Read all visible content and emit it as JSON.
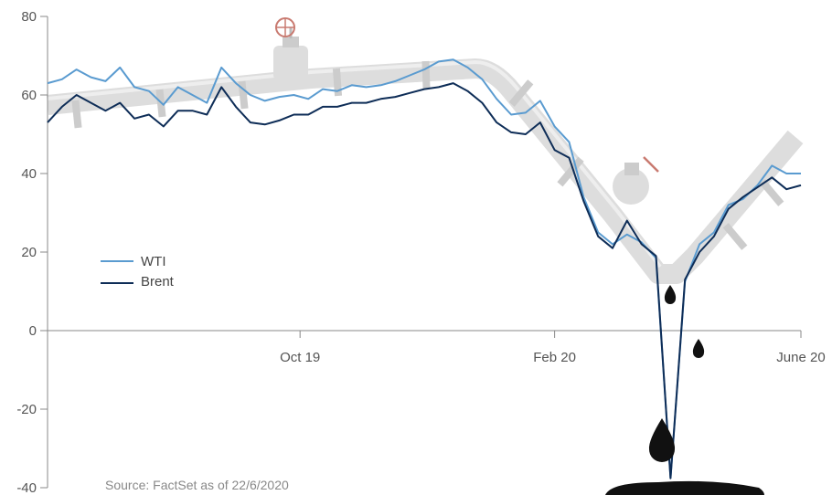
{
  "chart_data": {
    "type": "line",
    "title": "",
    "xlabel": "",
    "ylabel": "",
    "ylim": [
      -40,
      80
    ],
    "y_ticks": [
      80,
      60,
      40,
      20,
      0,
      -20,
      -40
    ],
    "x_ticks": [
      "Oct 19",
      "Feb 20",
      "June 20"
    ],
    "grid": false,
    "legend_position": "left",
    "source": "Source: FactSet as of 22/6/2020",
    "series": [
      {
        "name": "WTI",
        "color": "#5a9bd0",
        "points": [
          [
            "2019-06-24",
            63
          ],
          [
            "2019-07-01",
            64
          ],
          [
            "2019-07-08",
            66.5
          ],
          [
            "2019-07-15",
            64.5
          ],
          [
            "2019-07-22",
            63.5
          ],
          [
            "2019-07-29",
            67
          ],
          [
            "2019-08-05",
            62
          ],
          [
            "2019-08-12",
            61
          ],
          [
            "2019-08-19",
            57.5
          ],
          [
            "2019-08-26",
            62
          ],
          [
            "2019-09-02",
            60
          ],
          [
            "2019-09-09",
            58
          ],
          [
            "2019-09-16",
            67
          ],
          [
            "2019-09-23",
            63
          ],
          [
            "2019-09-30",
            60
          ],
          [
            "2019-10-07",
            58.5
          ],
          [
            "2019-10-14",
            59.5
          ],
          [
            "2019-10-21",
            60
          ],
          [
            "2019-10-28",
            59
          ],
          [
            "2019-11-04",
            61.5
          ],
          [
            "2019-11-11",
            61
          ],
          [
            "2019-11-18",
            62.5
          ],
          [
            "2019-11-25",
            62
          ],
          [
            "2019-12-02",
            62.5
          ],
          [
            "2019-12-09",
            63.5
          ],
          [
            "2019-12-16",
            65
          ],
          [
            "2019-12-23",
            66.5
          ],
          [
            "2019-12-30",
            68.5
          ],
          [
            "2020-01-06",
            69
          ],
          [
            "2020-01-13",
            67
          ],
          [
            "2020-01-20",
            64
          ],
          [
            "2020-01-27",
            59
          ],
          [
            "2020-02-03",
            55
          ],
          [
            "2020-02-10",
            55.5
          ],
          [
            "2020-02-17",
            58.5
          ],
          [
            "2020-02-24",
            52
          ],
          [
            "2020-03-02",
            48
          ],
          [
            "2020-03-09",
            34
          ],
          [
            "2020-03-16",
            25
          ],
          [
            "2020-03-23",
            22
          ],
          [
            "2020-03-30",
            24.5
          ],
          [
            "2020-04-06",
            22.5
          ],
          [
            "2020-04-13",
            18.5
          ],
          [
            "2020-04-20",
            -37.5
          ],
          [
            "2020-04-27",
            12.5
          ],
          [
            "2020-05-04",
            22
          ],
          [
            "2020-05-11",
            25
          ],
          [
            "2020-05-18",
            32
          ],
          [
            "2020-05-25",
            33.5
          ],
          [
            "2020-06-01",
            37
          ],
          [
            "2020-06-08",
            42
          ],
          [
            "2020-06-15",
            40
          ],
          [
            "2020-06-22",
            40
          ]
        ]
      },
      {
        "name": "Brent",
        "color": "#0e2d57",
        "points": [
          [
            "2019-06-24",
            53
          ],
          [
            "2019-07-01",
            57
          ],
          [
            "2019-07-08",
            60
          ],
          [
            "2019-07-15",
            58
          ],
          [
            "2019-07-22",
            56
          ],
          [
            "2019-07-29",
            58
          ],
          [
            "2019-08-05",
            54
          ],
          [
            "2019-08-12",
            55
          ],
          [
            "2019-08-19",
            52
          ],
          [
            "2019-08-26",
            56
          ],
          [
            "2019-09-02",
            56
          ],
          [
            "2019-09-09",
            55
          ],
          [
            "2019-09-16",
            62
          ],
          [
            "2019-09-23",
            57
          ],
          [
            "2019-09-30",
            53
          ],
          [
            "2019-10-07",
            52.5
          ],
          [
            "2019-10-14",
            53.5
          ],
          [
            "2019-10-21",
            55
          ],
          [
            "2019-10-28",
            55
          ],
          [
            "2019-11-04",
            57
          ],
          [
            "2019-11-11",
            57
          ],
          [
            "2019-11-18",
            58
          ],
          [
            "2019-11-25",
            58
          ],
          [
            "2019-12-02",
            59
          ],
          [
            "2019-12-09",
            59.5
          ],
          [
            "2019-12-16",
            60.5
          ],
          [
            "2019-12-23",
            61.5
          ],
          [
            "2019-12-30",
            62
          ],
          [
            "2020-01-06",
            63
          ],
          [
            "2020-01-13",
            61
          ],
          [
            "2020-01-20",
            58
          ],
          [
            "2020-01-27",
            53
          ],
          [
            "2020-02-03",
            50.5
          ],
          [
            "2020-02-10",
            50
          ],
          [
            "2020-02-17",
            53
          ],
          [
            "2020-02-24",
            46
          ],
          [
            "2020-03-02",
            44
          ],
          [
            "2020-03-09",
            33
          ],
          [
            "2020-03-16",
            24
          ],
          [
            "2020-03-23",
            21
          ],
          [
            "2020-03-30",
            28
          ],
          [
            "2020-04-06",
            22
          ],
          [
            "2020-04-13",
            19
          ],
          [
            "2020-04-20",
            -37.6
          ],
          [
            "2020-04-27",
            13
          ],
          [
            "2020-05-04",
            20
          ],
          [
            "2020-05-11",
            24
          ],
          [
            "2020-05-18",
            31
          ],
          [
            "2020-05-25",
            34
          ],
          [
            "2020-06-01",
            36.5
          ],
          [
            "2020-06-08",
            39
          ],
          [
            "2020-06-15",
            36
          ],
          [
            "2020-06-22",
            37
          ]
        ]
      }
    ]
  }
}
